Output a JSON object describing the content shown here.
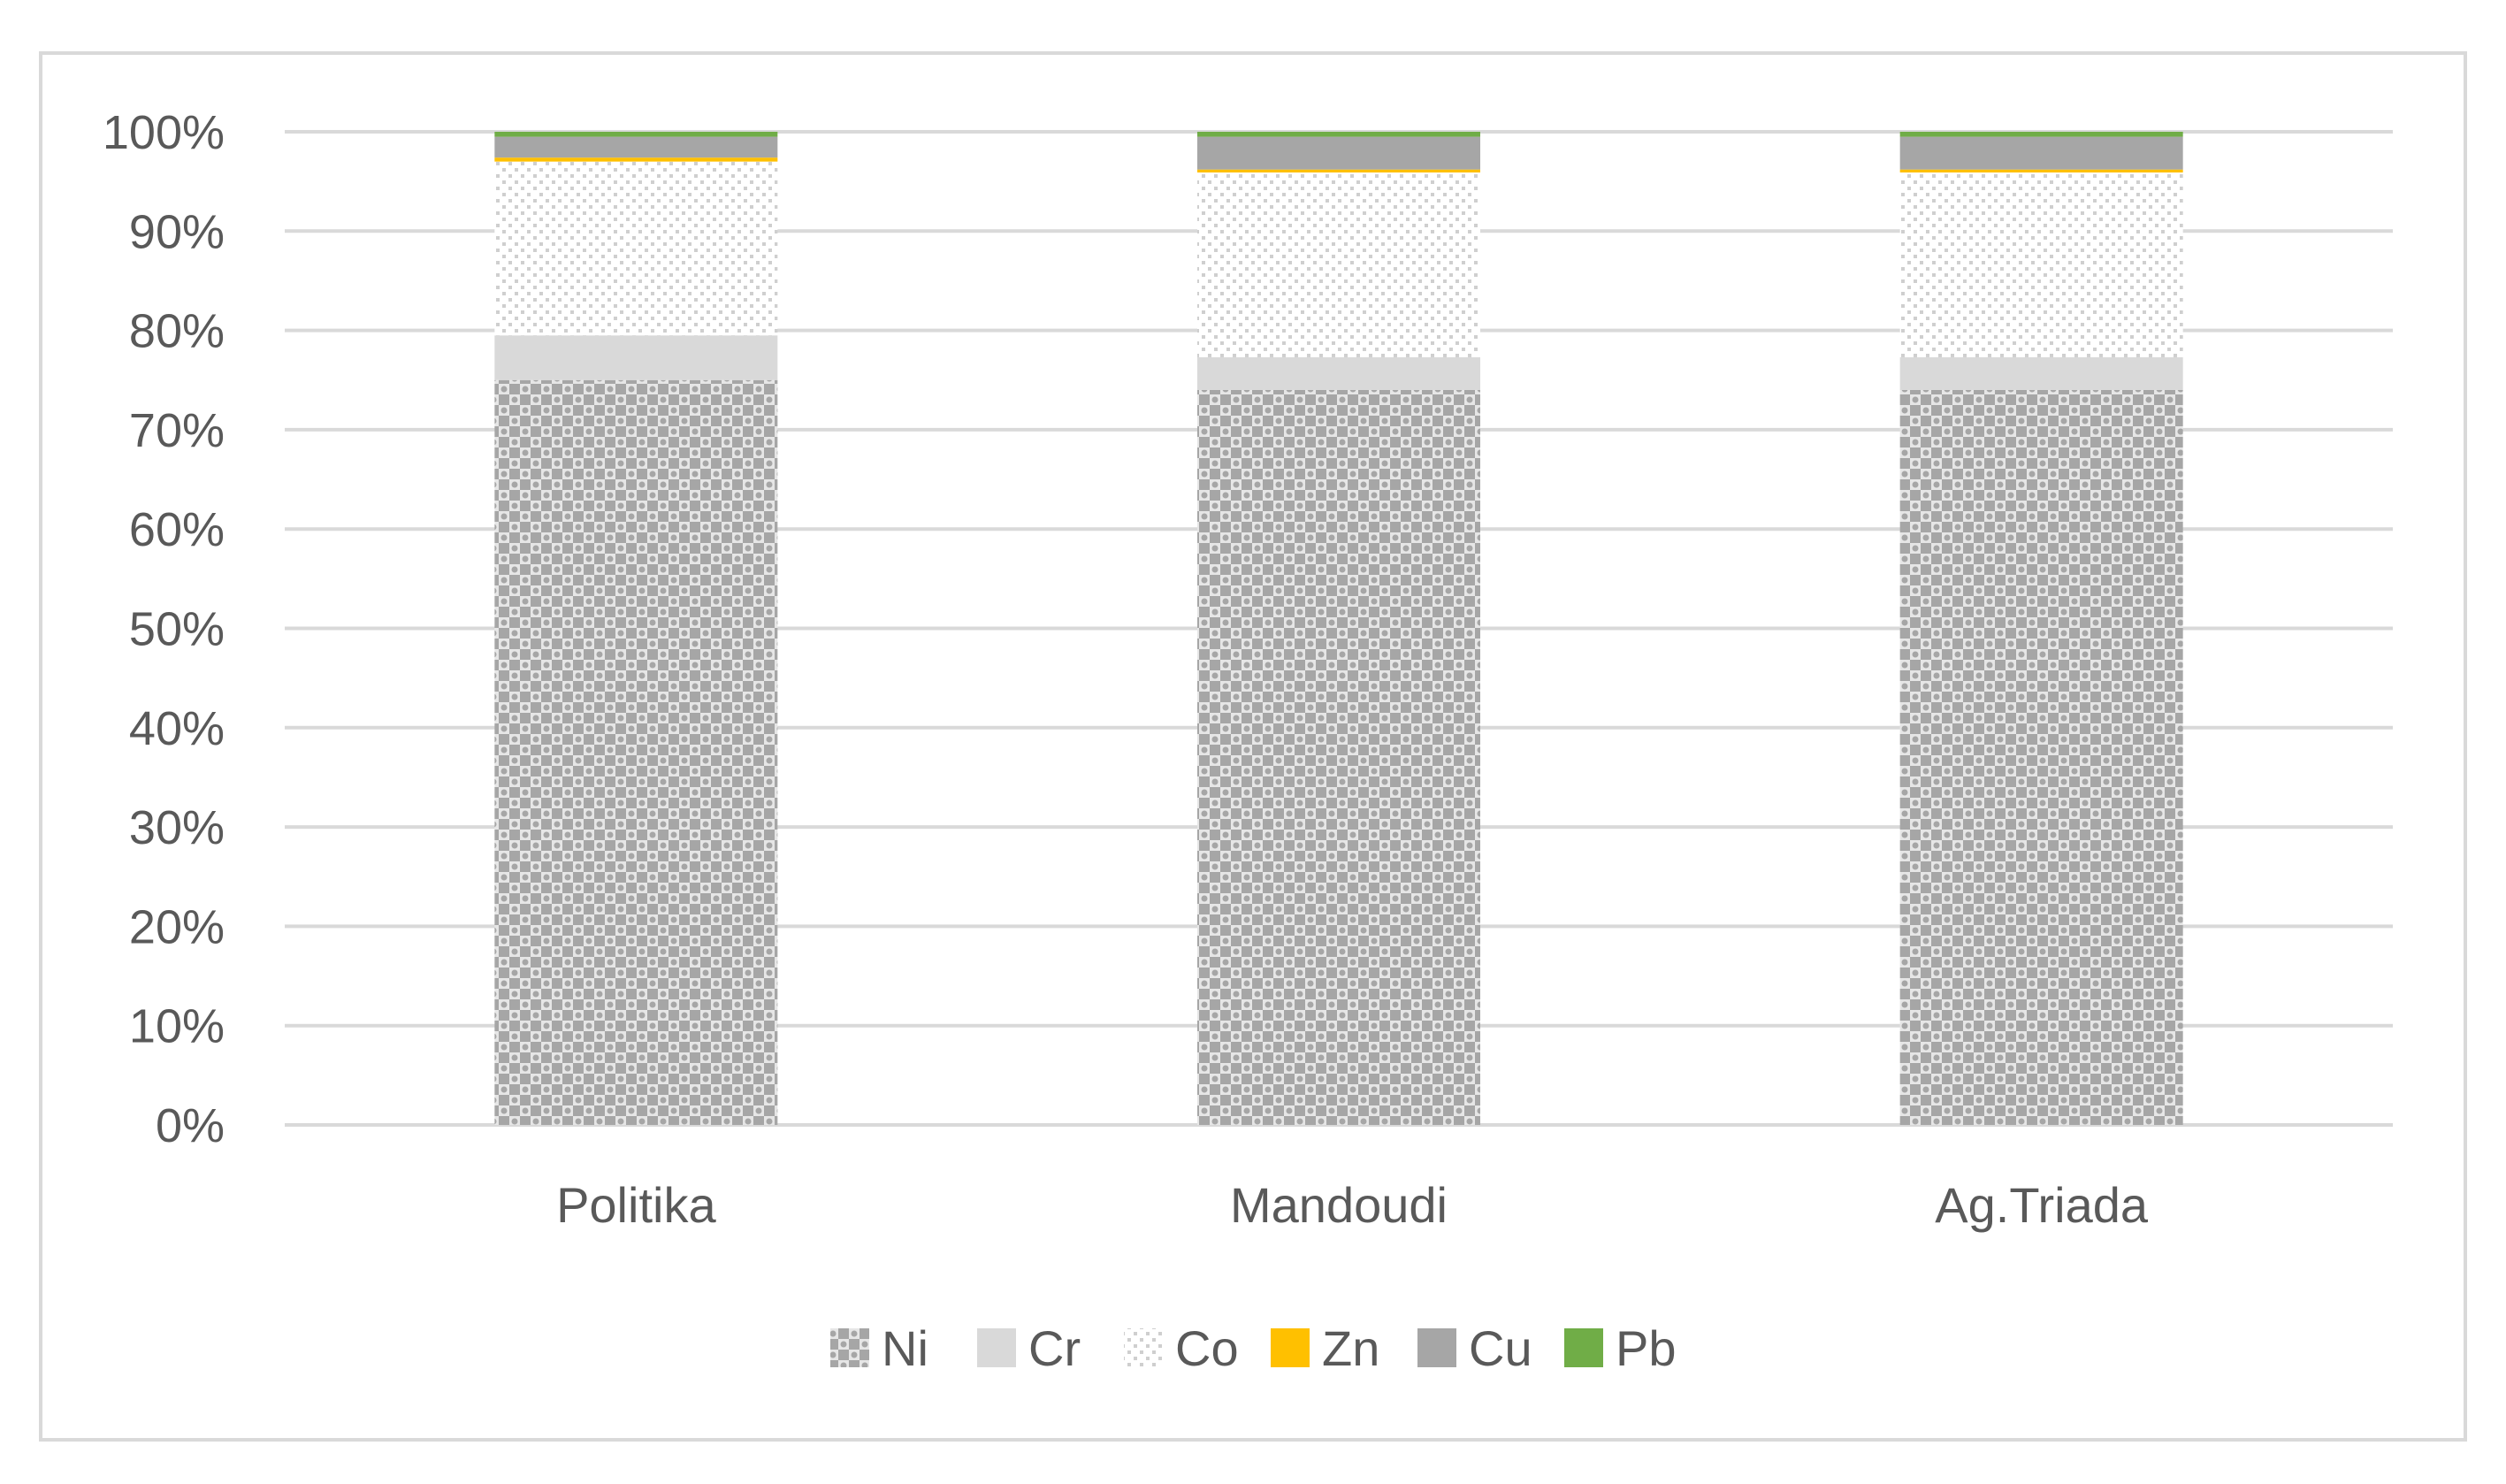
{
  "chart_data": {
    "type": "bar",
    "stacked": true,
    "normalized": true,
    "categories": [
      "Politika",
      "Mandoudi",
      "Ag.Triada"
    ],
    "y_ticks": [
      "0%",
      "10%",
      "20%",
      "30%",
      "40%",
      "50%",
      "60%",
      "70%",
      "80%",
      "90%",
      "100%"
    ],
    "ylim": [
      0,
      100
    ],
    "grid": true,
    "legend_position": "bottom",
    "series": [
      {
        "name": "Ni",
        "values": [
          75.0,
          74.0,
          74.0
        ],
        "color": "#a6a6a6",
        "pattern": "checker"
      },
      {
        "name": "Cr",
        "values": [
          4.5,
          3.3,
          3.3
        ],
        "color": "#d9d9d9",
        "pattern": "solid"
      },
      {
        "name": "Co",
        "values": [
          17.5,
          18.6,
          18.6
        ],
        "color": "#d9d9d9",
        "pattern": "dots"
      },
      {
        "name": "Zn",
        "values": [
          0.4,
          0.3,
          0.3
        ],
        "color": "#ffc000",
        "pattern": "solid"
      },
      {
        "name": "Cu",
        "values": [
          2.1,
          3.3,
          3.3
        ],
        "color": "#a6a6a6",
        "pattern": "solid"
      },
      {
        "name": "Pb",
        "values": [
          0.5,
          0.5,
          0.5
        ],
        "color": "#70ad47",
        "pattern": "solid"
      }
    ]
  }
}
